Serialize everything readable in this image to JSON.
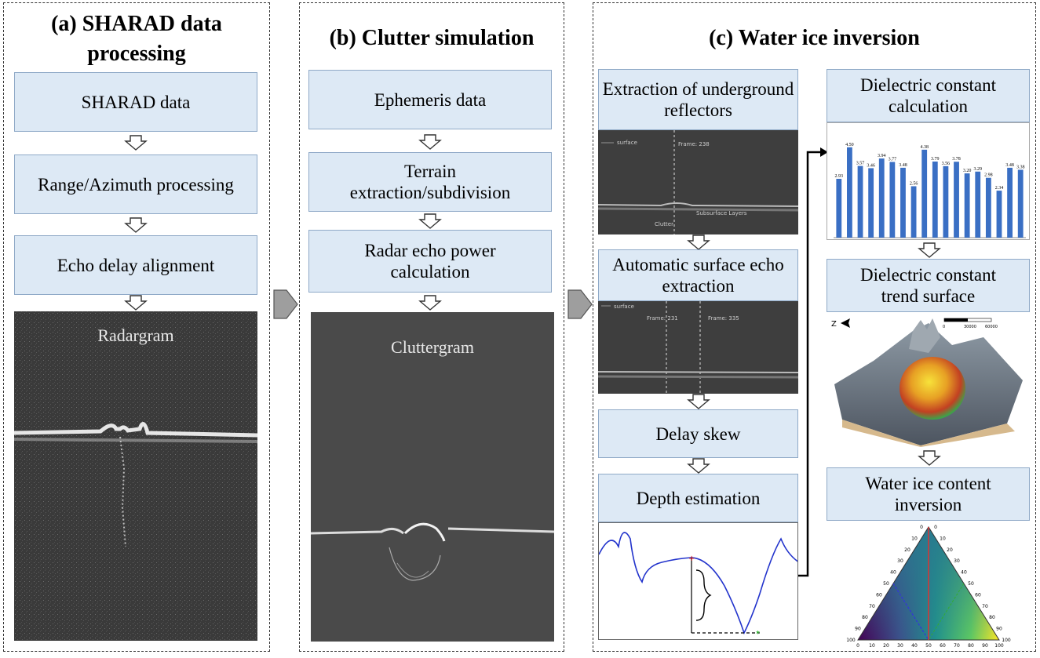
{
  "panel_a": {
    "title_line1": "(a) SHARAD data",
    "title_line2": "processing",
    "steps": [
      "SHARAD data",
      "Range/Azimuth processing",
      "Echo delay alignment"
    ],
    "image_label": "Radargram"
  },
  "panel_b": {
    "title": "(b) Clutter simulation",
    "steps": [
      "Ephemeris data",
      "Terrain extraction/subdivision",
      "Radar echo power calculation"
    ],
    "image_label": "Cluttergram"
  },
  "panel_c": {
    "title": "(c) Water ice inversion",
    "left_steps": [
      "Extraction of underground reflectors",
      "Automatic surface echo extraction",
      "Delay skew",
      "Depth estimation"
    ],
    "right_steps": [
      "Dielectric constant calculation",
      "Dielectric constant trend surface",
      "Water ice content inversion"
    ],
    "radar1_labels": [
      "surface",
      "Frame: 238",
      "Subsurface Layers",
      "Clutter"
    ],
    "radar2_labels": [
      "surface",
      "Frame: 231",
      "Frame: 335"
    ],
    "bar_values": [
      2.93,
      4.5,
      3.57,
      3.46,
      3.94,
      3.77,
      3.48,
      2.56,
      4.38,
      3.79,
      3.56,
      3.78,
      3.2,
      3.29,
      2.98,
      2.34,
      3.48,
      3.38
    ],
    "bar_labels": [
      "2.93",
      "4.50",
      "3.57",
      "3.46",
      "3.94",
      "3.77",
      "3.48",
      "2.56",
      "4.38",
      "3.79",
      "3.56",
      "3.78",
      "3.20",
      "3.29",
      "2.98",
      "2.34",
      "3.48",
      "3.38"
    ],
    "bar_color": "#3a6fc4",
    "ternary_ticks": [
      "0",
      "10",
      "20",
      "30",
      "40",
      "50",
      "60",
      "70",
      "80",
      "90",
      "100"
    ],
    "compass": "Z",
    "scale_labels": [
      "0",
      "30000",
      "60000"
    ]
  }
}
